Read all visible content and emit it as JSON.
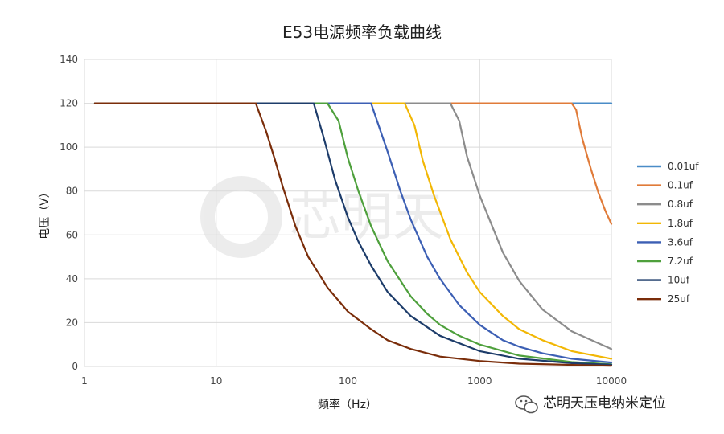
{
  "chart_data": {
    "type": "line",
    "title": "E53电源频率负载曲线",
    "xlabel": "频率（Hz）",
    "ylabel": "电压（V）",
    "x_scale": "log",
    "xlim": [
      1,
      10000
    ],
    "ylim": [
      0,
      140
    ],
    "x_ticks": [
      "1",
      "10",
      "100",
      "1000",
      "10000"
    ],
    "y_ticks": [
      "0",
      "20",
      "40",
      "60",
      "80",
      "100",
      "120",
      "140"
    ],
    "grid": true,
    "legend_position": "right",
    "series": [
      {
        "name": "0.01uf",
        "color": "#4a8cc7",
        "x": [
          1.2,
          10000
        ],
        "y": [
          120,
          120
        ]
      },
      {
        "name": "0.1uf",
        "color": "#e07b39",
        "x": [
          1.2,
          5000,
          5400,
          6000,
          7000,
          8000,
          9000,
          10000
        ],
        "y": [
          120,
          120,
          117,
          104,
          90,
          79,
          71,
          65
        ]
      },
      {
        "name": "0.8uf",
        "color": "#8c8c8c",
        "x": [
          1.2,
          600,
          700,
          800,
          1000,
          1500,
          2000,
          3000,
          5000,
          10000
        ],
        "y": [
          120,
          120,
          112,
          96,
          78,
          52,
          39,
          26,
          16,
          8
        ]
      },
      {
        "name": "1.8uf",
        "color": "#f2b705",
        "x": [
          1.2,
          270,
          320,
          370,
          450,
          600,
          800,
          1000,
          1500,
          2000,
          3000,
          5000,
          10000
        ],
        "y": [
          120,
          120,
          110,
          94,
          78,
          58,
          43,
          34,
          23,
          17,
          12,
          7,
          3.5
        ]
      },
      {
        "name": "3.6uf",
        "color": "#3c5fb4",
        "x": [
          1.2,
          150,
          200,
          250,
          300,
          400,
          500,
          700,
          1000,
          1500,
          2000,
          3000,
          5000,
          10000
        ],
        "y": [
          120,
          120,
          98,
          80,
          67,
          50,
          40,
          28,
          19,
          12,
          9,
          6,
          3.5,
          1.8
        ]
      },
      {
        "name": "7.2uf",
        "color": "#4ea03c",
        "x": [
          1.2,
          70,
          85,
          100,
          120,
          150,
          200,
          300,
          400,
          500,
          700,
          1000,
          2000,
          5000,
          10000
        ],
        "y": [
          120,
          120,
          112,
          95,
          80,
          64,
          48,
          32,
          24,
          19,
          14,
          10,
          5,
          2,
          1
        ]
      },
      {
        "name": "10uf",
        "color": "#1d3c6a",
        "x": [
          1.2,
          55,
          65,
          80,
          100,
          120,
          150,
          200,
          300,
          500,
          1000,
          2000,
          5000,
          10000
        ],
        "y": [
          120,
          120,
          105,
          85,
          68,
          57,
          46,
          34,
          23,
          14,
          7,
          3.5,
          1.5,
          0.8
        ]
      },
      {
        "name": "25uf",
        "color": "#7a2d0a",
        "x": [
          1.2,
          20,
          24,
          28,
          32,
          40,
          50,
          70,
          100,
          150,
          200,
          300,
          500,
          1000,
          2000,
          10000
        ],
        "y": [
          120,
          120,
          107,
          94,
          82,
          64,
          50,
          36,
          25,
          17,
          12,
          8,
          4.5,
          2.5,
          1.3,
          0.3
        ]
      }
    ]
  },
  "watermark": {
    "brand_text": "芯明天压电纳米定位",
    "icon": "wechat-icon",
    "logo_text": "芯明天"
  }
}
